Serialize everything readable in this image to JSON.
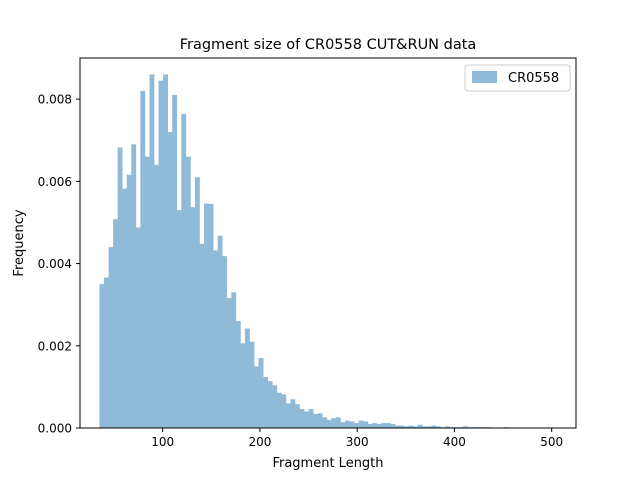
{
  "chart_data": {
    "type": "bar",
    "title": "Fragment size of CR0558 CUT&RUN data",
    "xlabel": "Fragment Length",
    "ylabel": "Frequency",
    "xlim": [
      15,
      525
    ],
    "ylim": [
      0,
      0.009
    ],
    "xticks": [
      "100",
      "200",
      "300",
      "400",
      "500"
    ],
    "yticks": [
      "0.000",
      "0.002",
      "0.004",
      "0.006",
      "0.008"
    ],
    "legend_position": "top-right",
    "bin_start": 35,
    "bin_width": 4.675,
    "series": [
      {
        "name": "CR0558",
        "color": "#8fbbd9",
        "values": [
          0.0035,
          0.00366,
          0.0044,
          0.00508,
          0.00682,
          0.00582,
          0.00616,
          0.0069,
          0.00488,
          0.0082,
          0.0066,
          0.0086,
          0.0064,
          0.00845,
          0.0086,
          0.0072,
          0.0081,
          0.0053,
          0.00764,
          0.0066,
          0.00537,
          0.0061,
          0.00448,
          0.00546,
          0.00545,
          0.00432,
          0.00468,
          0.00418,
          0.00316,
          0.0033,
          0.0026,
          0.00206,
          0.00242,
          0.0021,
          0.0015,
          0.0017,
          0.00124,
          0.00114,
          0.00104,
          0.00086,
          0.00082,
          0.0006,
          0.0007,
          0.00058,
          0.00046,
          0.0004,
          0.00046,
          0.00034,
          0.00036,
          0.00026,
          0.0002,
          0.00024,
          0.00026,
          0.00014,
          0.00018,
          0.00016,
          0.00012,
          0.00018,
          0.00016,
          0.0001,
          0.00012,
          0.0001,
          0.00012,
          0.00012,
          0.0001,
          6e-05,
          6e-05,
          4e-05,
          6e-05,
          4e-05,
          8e-05,
          4e-05,
          4e-05,
          6e-05,
          4e-05,
          2e-05,
          4e-05,
          2e-05,
          2e-05,
          2e-05,
          4e-05,
          2e-05,
          2e-05,
          2e-05,
          2e-05,
          2e-05,
          1e-05,
          1e-05,
          1e-05,
          2e-05,
          1e-05,
          1e-05,
          1e-05,
          1e-05,
          1e-05,
          1e-05,
          1e-05,
          1e-05,
          1e-05,
          1e-05
        ]
      }
    ]
  }
}
